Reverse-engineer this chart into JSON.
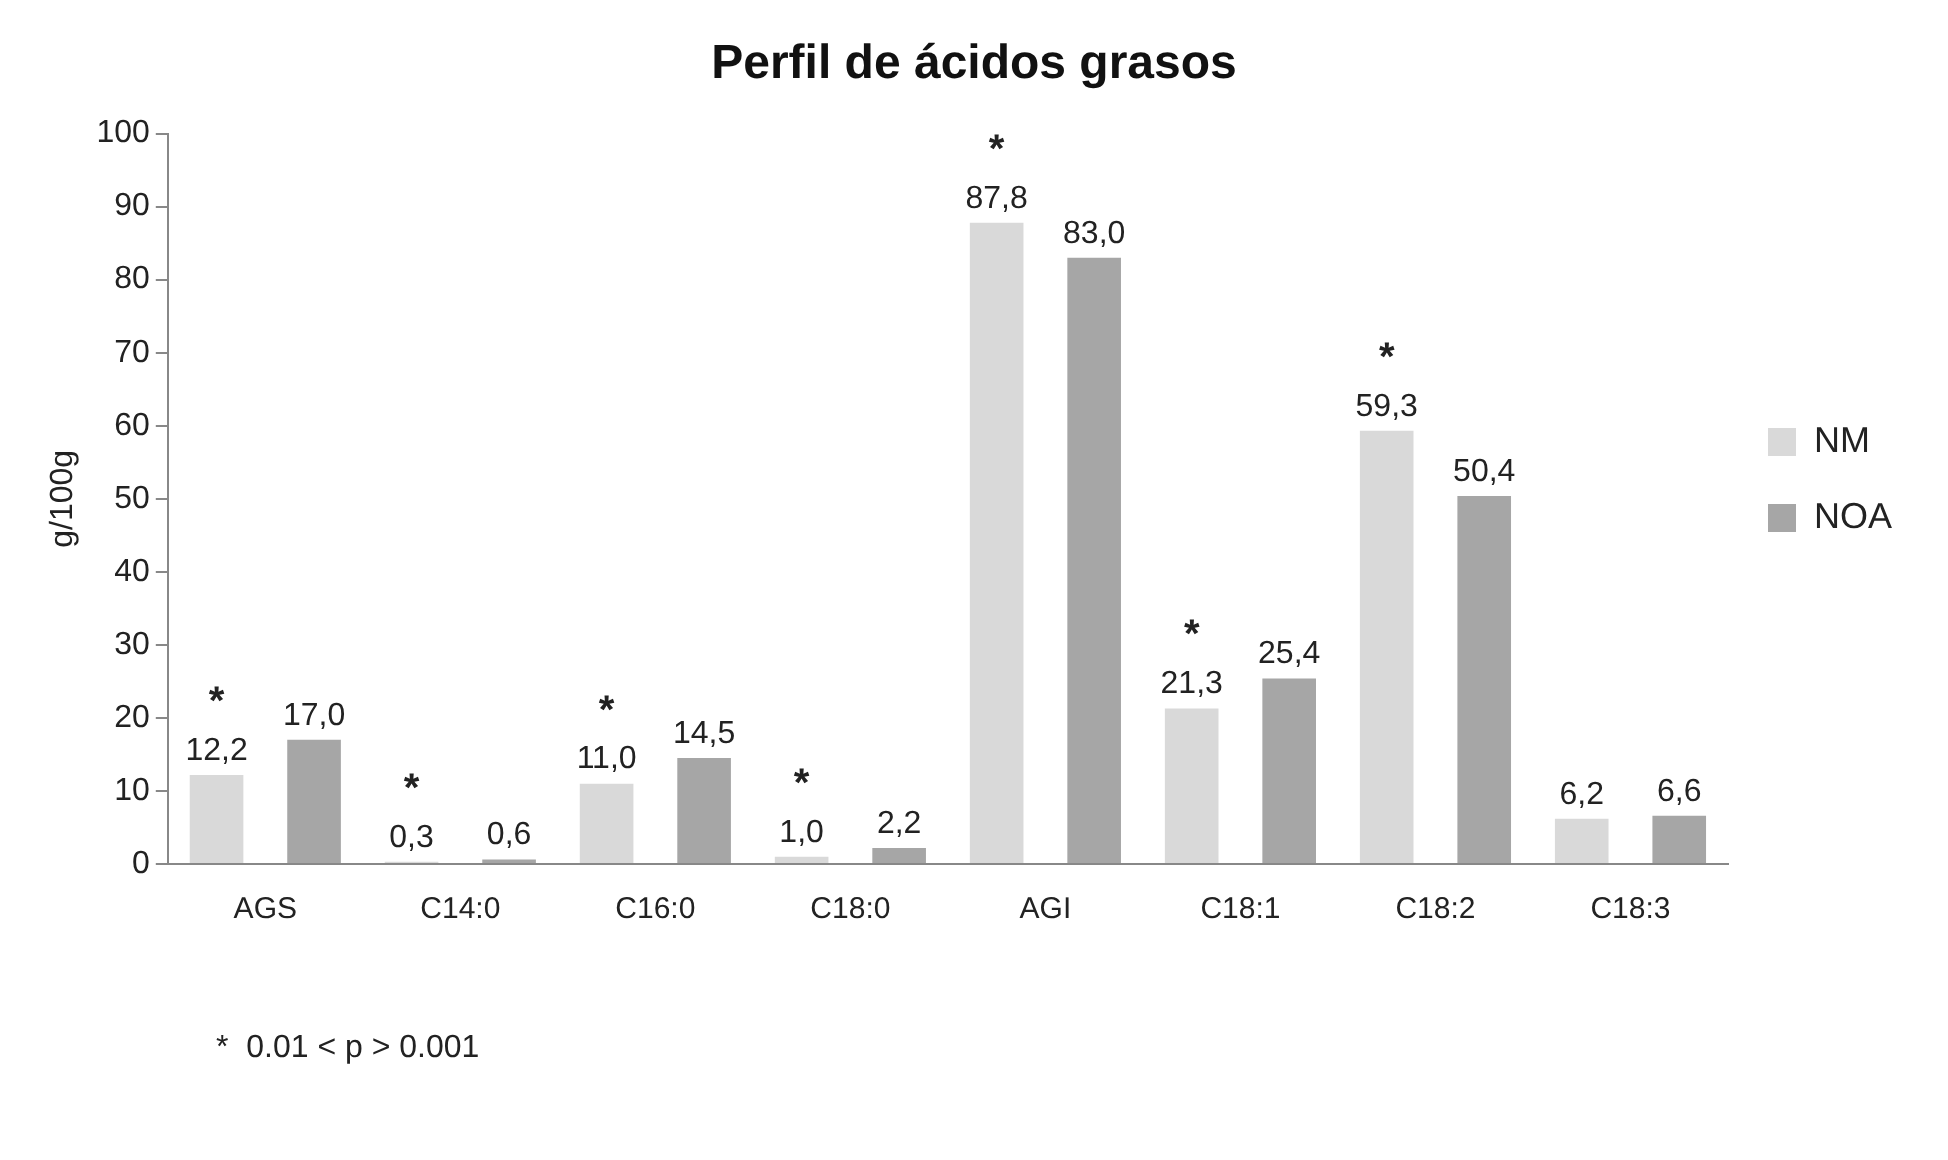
{
  "chart_data": {
    "type": "bar",
    "title": "Perfil de ácidos grasos",
    "ylabel": "g/100g",
    "categories": [
      "AGS",
      "C14:0",
      "C16:0",
      "C18:0",
      "AGI",
      "C18:1",
      "C18:2",
      "C18:3"
    ],
    "series": [
      {
        "name": "NM",
        "color": "#d9d9d9",
        "values": [
          12.2,
          0.3,
          11.0,
          1.0,
          87.8,
          21.3,
          59.3,
          6.2
        ],
        "value_labels": [
          "12,2",
          "0,3",
          "11,0",
          "1,0",
          "87,8",
          "21,3",
          "59,3",
          "6,2"
        ]
      },
      {
        "name": "NOA",
        "color": "#a6a6a6",
        "values": [
          17.0,
          0.6,
          14.5,
          2.2,
          83.0,
          25.4,
          50.4,
          6.6
        ],
        "value_labels": [
          "17,0",
          "0,6",
          "14,5",
          "2,2",
          "83,0",
          "25,4",
          "50,4",
          "6,6"
        ]
      }
    ],
    "ylim": [
      0,
      100
    ],
    "yticks": [
      0,
      10,
      20,
      30,
      40,
      50,
      60,
      70,
      80,
      90,
      100
    ],
    "legend": "right",
    "annotations": [
      "*",
      "*",
      "*",
      "*",
      "*",
      "*",
      "*",
      "*  0.01 < p > 0.001"
    ]
  }
}
